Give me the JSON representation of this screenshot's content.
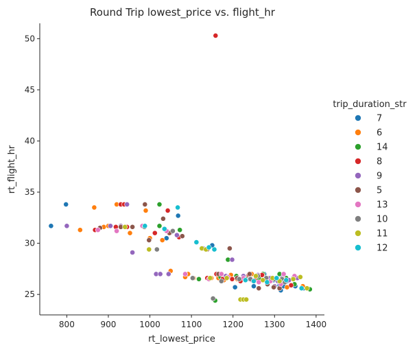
{
  "chart_data": {
    "type": "scatter",
    "title": "Round Trip lowest_price vs. flight_hr",
    "xlabel": "rt_lowest_price",
    "ylabel": "rt_flight_hr",
    "xlim": [
      735,
      1420
    ],
    "ylim": [
      23.0,
      51.5
    ],
    "xticks": [
      800,
      900,
      1000,
      1100,
      1200,
      1300,
      1400
    ],
    "yticks": [
      25,
      30,
      35,
      40,
      45,
      50
    ],
    "grid": false,
    "legend_title": "trip_duration_str",
    "legend_placement": "right",
    "series": [
      {
        "name": "7",
        "color": "#1f77b4",
        "points": [
          [
            762,
            31.7
          ],
          [
            798,
            33.8
          ],
          [
            1068,
            32.7
          ],
          [
            1040,
            30.5
          ],
          [
            1128,
            29.5
          ],
          [
            1150,
            29.8
          ],
          [
            1205,
            25.7
          ],
          [
            1235,
            26.7
          ],
          [
            1250,
            25.8
          ],
          [
            1275,
            27.0
          ],
          [
            1298,
            26.4
          ],
          [
            1312,
            25.9
          ],
          [
            1315,
            25.4
          ],
          [
            1322,
            25.8
          ],
          [
            1330,
            26.3
          ],
          [
            1350,
            25.8
          ],
          [
            1370,
            25.6
          ]
        ]
      },
      {
        "name": "6",
        "color": "#ff7f0e",
        "points": [
          [
            832,
            31.3
          ],
          [
            866,
            33.5
          ],
          [
            920,
            33.8
          ],
          [
            889,
            31.6
          ],
          [
            900,
            31.7
          ],
          [
            952,
            31.0
          ],
          [
            990,
            33.2
          ],
          [
            1000,
            30.5
          ],
          [
            1030,
            30.3
          ],
          [
            1050,
            27.3
          ],
          [
            1085,
            26.7
          ],
          [
            1092,
            27.0
          ],
          [
            1105,
            26.6
          ],
          [
            1148,
            26.6
          ],
          [
            1165,
            26.6
          ],
          [
            1178,
            26.4
          ],
          [
            1195,
            26.9
          ],
          [
            1210,
            26.5
          ],
          [
            1245,
            27.0
          ],
          [
            1262,
            26.3
          ],
          [
            1285,
            26.6
          ],
          [
            1330,
            25.7
          ],
          [
            1345,
            26.6
          ],
          [
            1368,
            25.8
          ]
        ]
      },
      {
        "name": "14",
        "color": "#2ca02c",
        "points": [
          [
            1023,
            33.8
          ],
          [
            1023,
            31.7
          ],
          [
            1072,
            31.3
          ],
          [
            1118,
            26.5
          ],
          [
            1157,
            24.4
          ],
          [
            1170,
            26.7
          ],
          [
            1188,
            28.4
          ],
          [
            1208,
            26.8
          ],
          [
            1232,
            26.5
          ],
          [
            1262,
            26.6
          ],
          [
            1272,
            27.0
          ],
          [
            1288,
            26.5
          ],
          [
            1312,
            27.0
          ],
          [
            1328,
            26.6
          ],
          [
            1348,
            26.0
          ],
          [
            1385,
            25.5
          ]
        ]
      },
      {
        "name": "8",
        "color": "#d62728",
        "points": [
          [
            1158,
            50.3
          ],
          [
            868,
            31.3
          ],
          [
            918,
            31.6
          ],
          [
            930,
            33.8
          ],
          [
            938,
            33.8
          ],
          [
            945,
            31.6
          ],
          [
            1012,
            31.0
          ],
          [
            1043,
            33.2
          ],
          [
            1070,
            30.6
          ],
          [
            1138,
            26.6
          ],
          [
            1160,
            27.0
          ],
          [
            1175,
            26.5
          ],
          [
            1198,
            26.5
          ],
          [
            1218,
            26.3
          ],
          [
            1238,
            26.9
          ],
          [
            1252,
            26.4
          ],
          [
            1270,
            26.9
          ],
          [
            1295,
            26.5
          ],
          [
            1320,
            26.6
          ],
          [
            1340,
            25.9
          ]
        ]
      },
      {
        "name": "9",
        "color": "#9467bd",
        "points": [
          [
            800,
            31.7
          ],
          [
            905,
            31.7
          ],
          [
            930,
            31.7
          ],
          [
            945,
            33.8
          ],
          [
            958,
            29.1
          ],
          [
            1015,
            27.0
          ],
          [
            1025,
            27.0
          ],
          [
            1045,
            27.0
          ],
          [
            1052,
            31.1
          ],
          [
            1065,
            30.8
          ],
          [
            1128,
            29.5
          ],
          [
            1183,
            26.8
          ],
          [
            1198,
            28.4
          ],
          [
            1225,
            26.8
          ],
          [
            1240,
            26.5
          ],
          [
            1260,
            26.9
          ],
          [
            1290,
            26.6
          ],
          [
            1300,
            25.8
          ],
          [
            1308,
            26.3
          ],
          [
            1318,
            26.6
          ],
          [
            1335,
            26.4
          ],
          [
            1355,
            26.6
          ]
        ]
      },
      {
        "name": "5",
        "color": "#8c564b",
        "points": [
          [
            880,
            31.5
          ],
          [
            930,
            31.6
          ],
          [
            958,
            31.6
          ],
          [
            988,
            33.8
          ],
          [
            998,
            30.3
          ],
          [
            1032,
            32.4
          ],
          [
            1047,
            31.0
          ],
          [
            1078,
            30.7
          ],
          [
            1138,
            29.4
          ],
          [
            1192,
            29.5
          ],
          [
            1165,
            27.0
          ],
          [
            1210,
            26.6
          ],
          [
            1240,
            27.0
          ],
          [
            1262,
            25.6
          ],
          [
            1283,
            26.0
          ],
          [
            1298,
            25.7
          ],
          [
            1312,
            25.6
          ],
          [
            1345,
            26.6
          ]
        ]
      },
      {
        "name": "13",
        "color": "#e377c2",
        "points": [
          [
            875,
            31.3
          ],
          [
            920,
            31.2
          ],
          [
            982,
            31.7
          ],
          [
            1040,
            31.2
          ],
          [
            1085,
            27.0
          ],
          [
            1142,
            26.5
          ],
          [
            1172,
            27.0
          ],
          [
            1188,
            26.7
          ],
          [
            1225,
            26.6
          ],
          [
            1245,
            26.4
          ],
          [
            1262,
            26.2
          ],
          [
            1290,
            26.3
          ],
          [
            1315,
            26.0
          ],
          [
            1322,
            27.0
          ],
          [
            1348,
            26.8
          ]
        ]
      },
      {
        "name": "10",
        "color": "#7f7f7f",
        "points": [
          [
            987,
            31.6
          ],
          [
            1017,
            29.4
          ],
          [
            1055,
            31.2
          ],
          [
            1103,
            26.6
          ],
          [
            1152,
            24.6
          ],
          [
            1172,
            26.3
          ],
          [
            1215,
            26.5
          ],
          [
            1242,
            26.5
          ],
          [
            1260,
            26.8
          ],
          [
            1280,
            26.6
          ],
          [
            1300,
            26.5
          ],
          [
            1318,
            26.5
          ],
          [
            1325,
            26.2
          ]
        ]
      },
      {
        "name": "11",
        "color": "#bcbd22",
        "points": [
          [
            940,
            31.6
          ],
          [
            998,
            29.4
          ],
          [
            1125,
            29.5
          ],
          [
            1135,
            29.4
          ],
          [
            1145,
            26.6
          ],
          [
            1185,
            26.6
          ],
          [
            1218,
            24.5
          ],
          [
            1225,
            24.5
          ],
          [
            1232,
            24.5
          ],
          [
            1255,
            26.8
          ],
          [
            1272,
            26.4
          ],
          [
            1295,
            26.6
          ],
          [
            1312,
            26.3
          ],
          [
            1345,
            26.5
          ],
          [
            1362,
            26.7
          ],
          [
            1378,
            25.6
          ]
        ]
      },
      {
        "name": "12",
        "color": "#17becf",
        "points": [
          [
            988,
            31.7
          ],
          [
            1035,
            31.4
          ],
          [
            1067,
            33.5
          ],
          [
            1112,
            30.1
          ],
          [
            1142,
            29.6
          ],
          [
            1155,
            29.4
          ],
          [
            1230,
            26.4
          ],
          [
            1250,
            26.3
          ],
          [
            1282,
            26.2
          ],
          [
            1305,
            26.6
          ],
          [
            1328,
            26.4
          ],
          [
            1365,
            25.6
          ]
        ]
      }
    ]
  }
}
